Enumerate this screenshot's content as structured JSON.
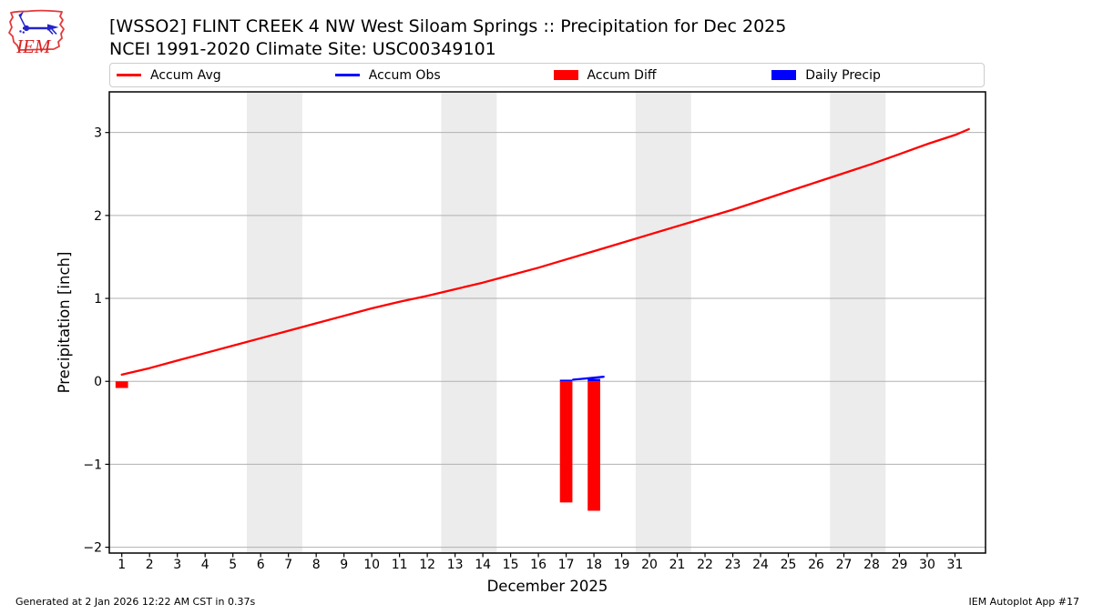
{
  "header": {
    "title_line1": "[WSSO2] FLINT CREEK 4 NW West Siloam Springs :: Precipitation for Dec 2025",
    "title_line2": "NCEI 1991-2020 Climate Site: USC00349101",
    "logo_text": "IEM"
  },
  "legend": {
    "items": [
      {
        "label": "Accum Avg",
        "swatch": "line",
        "color": "#ff0000"
      },
      {
        "label": "Accum Obs",
        "swatch": "line",
        "color": "#0000ff"
      },
      {
        "label": "Accum Diff",
        "swatch": "rect",
        "color": "#ff0000"
      },
      {
        "label": "Daily Precip",
        "swatch": "rect",
        "color": "#0000ff"
      }
    ]
  },
  "footer": {
    "generated": "Generated at 2 Jan 2026 12:22 AM CST in 0.37s",
    "app": "IEM Autoplot App #17"
  },
  "chart_data": {
    "type": "line+bar",
    "xlabel": "December 2025",
    "ylabel": "Precipitation [inch]",
    "xlim": [
      0.55,
      32.1
    ],
    "ylim": [
      -2.07,
      3.49
    ],
    "xticks": [
      1,
      2,
      3,
      4,
      5,
      6,
      7,
      8,
      9,
      10,
      11,
      12,
      13,
      14,
      15,
      16,
      17,
      18,
      19,
      20,
      21,
      22,
      23,
      24,
      25,
      26,
      27,
      28,
      29,
      30,
      31
    ],
    "yticks": [
      -2,
      -1,
      0,
      1,
      2,
      3
    ],
    "grid": "horizontal",
    "weekend_bands": [
      [
        5.5,
        7.5
      ],
      [
        12.5,
        14.5
      ],
      [
        19.5,
        21.5
      ],
      [
        26.5,
        28.5
      ]
    ],
    "colors": {
      "weekend_band": "#ececec",
      "grid": "#b0b0b0",
      "accum_avg": "#ff0000",
      "accum_obs": "#0000ff"
    },
    "series": [
      {
        "name": "Accum Avg",
        "type": "line",
        "color": "#ff0000",
        "x": [
          1,
          2,
          3,
          4,
          5,
          6,
          7,
          8,
          9,
          10,
          11,
          12,
          13,
          14,
          15,
          16,
          17,
          18,
          19,
          20,
          21,
          22,
          23,
          24,
          25,
          26,
          27,
          28,
          29,
          30,
          31,
          31.5
        ],
        "y": [
          0.08,
          0.16,
          0.25,
          0.34,
          0.43,
          0.52,
          0.61,
          0.7,
          0.79,
          0.88,
          0.96,
          1.03,
          1.11,
          1.19,
          1.28,
          1.37,
          1.47,
          1.57,
          1.67,
          1.77,
          1.87,
          1.97,
          2.07,
          2.18,
          2.29,
          2.4,
          2.51,
          2.62,
          2.74,
          2.86,
          2.97,
          3.04
        ]
      },
      {
        "name": "Accum Obs",
        "type": "line",
        "color": "#0000ff",
        "x": [
          17.25,
          18.35
        ],
        "y": [
          0.02,
          0.055
        ]
      },
      {
        "name": "Accum Diff",
        "type": "bar",
        "color": "#ff0000",
        "bar_width": 0.45,
        "x": [
          1,
          17,
          18
        ],
        "y": [
          -0.08,
          -1.46,
          -1.56
        ]
      },
      {
        "name": "Daily Precip",
        "type": "bar",
        "color": "#0000ff",
        "bar_width": 0.45,
        "x": [
          17,
          18
        ],
        "y": [
          0.02,
          0.03
        ]
      }
    ]
  }
}
